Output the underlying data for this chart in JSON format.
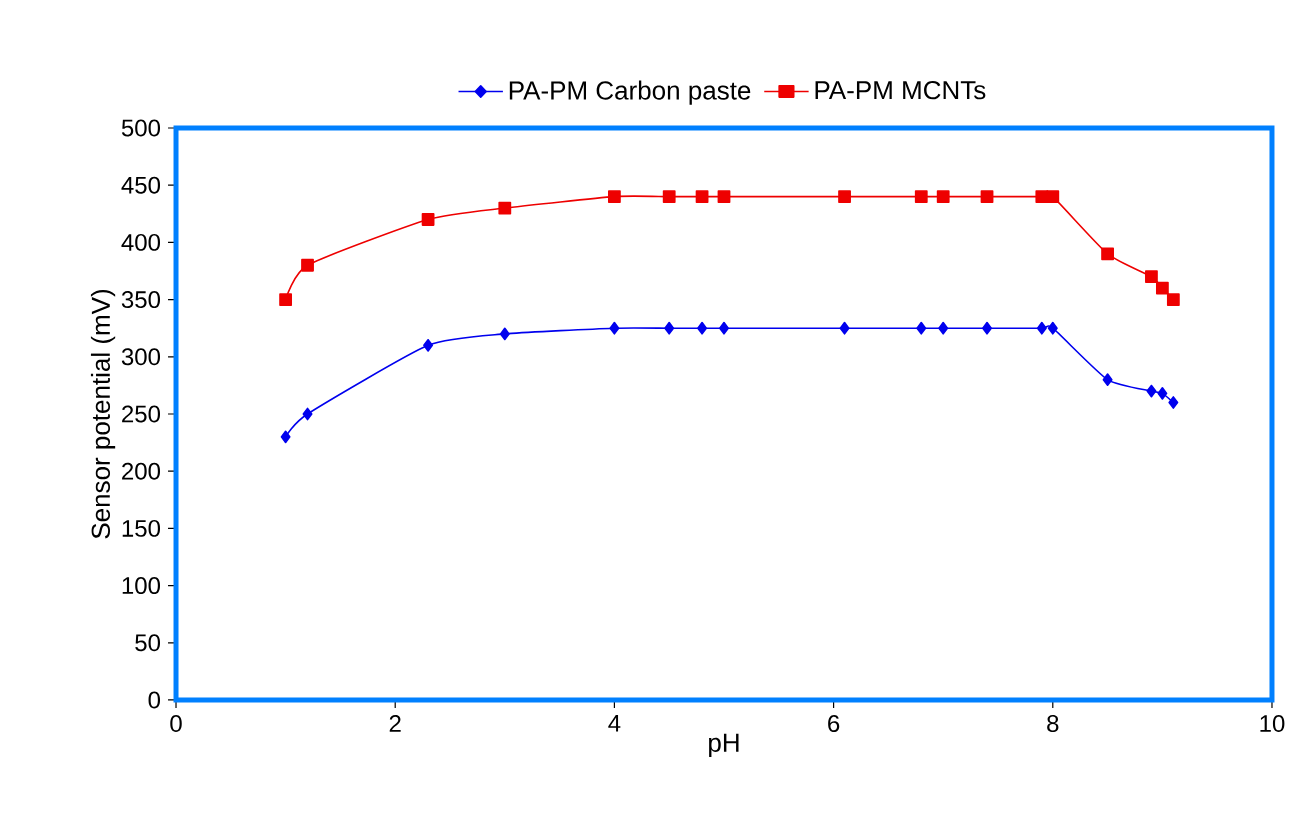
{
  "chart_data": {
    "type": "line",
    "xlabel": "pH",
    "ylabel": "Sensor potential (mV)",
    "xlim": [
      0,
      10
    ],
    "xticks": [
      0,
      2,
      4,
      6,
      8,
      10
    ],
    "ylim": [
      0,
      500
    ],
    "yticks": [
      0,
      50,
      100,
      150,
      200,
      250,
      300,
      350,
      400,
      450,
      500
    ],
    "legend": "top",
    "grid": false,
    "series": [
      {
        "name": "PA-PM Carbon paste",
        "color": "#0000ee",
        "marker": "diamond",
        "x": [
          1.0,
          1.2,
          2.3,
          3.0,
          4.0,
          4.5,
          4.8,
          5.0,
          6.1,
          6.8,
          7.0,
          7.4,
          7.9,
          8.0,
          8.5,
          8.9,
          9.0,
          9.1
        ],
        "values": [
          230,
          250,
          310,
          320,
          325,
          325,
          325,
          325,
          325,
          325,
          325,
          325,
          325,
          325,
          280,
          270,
          268,
          260
        ]
      },
      {
        "name": "PA-PM MCNTs",
        "color": "#ee0000",
        "marker": "square",
        "x": [
          1.0,
          1.2,
          2.3,
          3.0,
          4.0,
          4.5,
          4.8,
          5.0,
          6.1,
          6.8,
          7.0,
          7.4,
          7.9,
          8.0,
          8.5,
          8.9,
          9.0,
          9.1
        ],
        "values": [
          350,
          380,
          420,
          430,
          440,
          440,
          440,
          440,
          440,
          440,
          440,
          440,
          440,
          440,
          390,
          370,
          360,
          350
        ]
      }
    ]
  }
}
